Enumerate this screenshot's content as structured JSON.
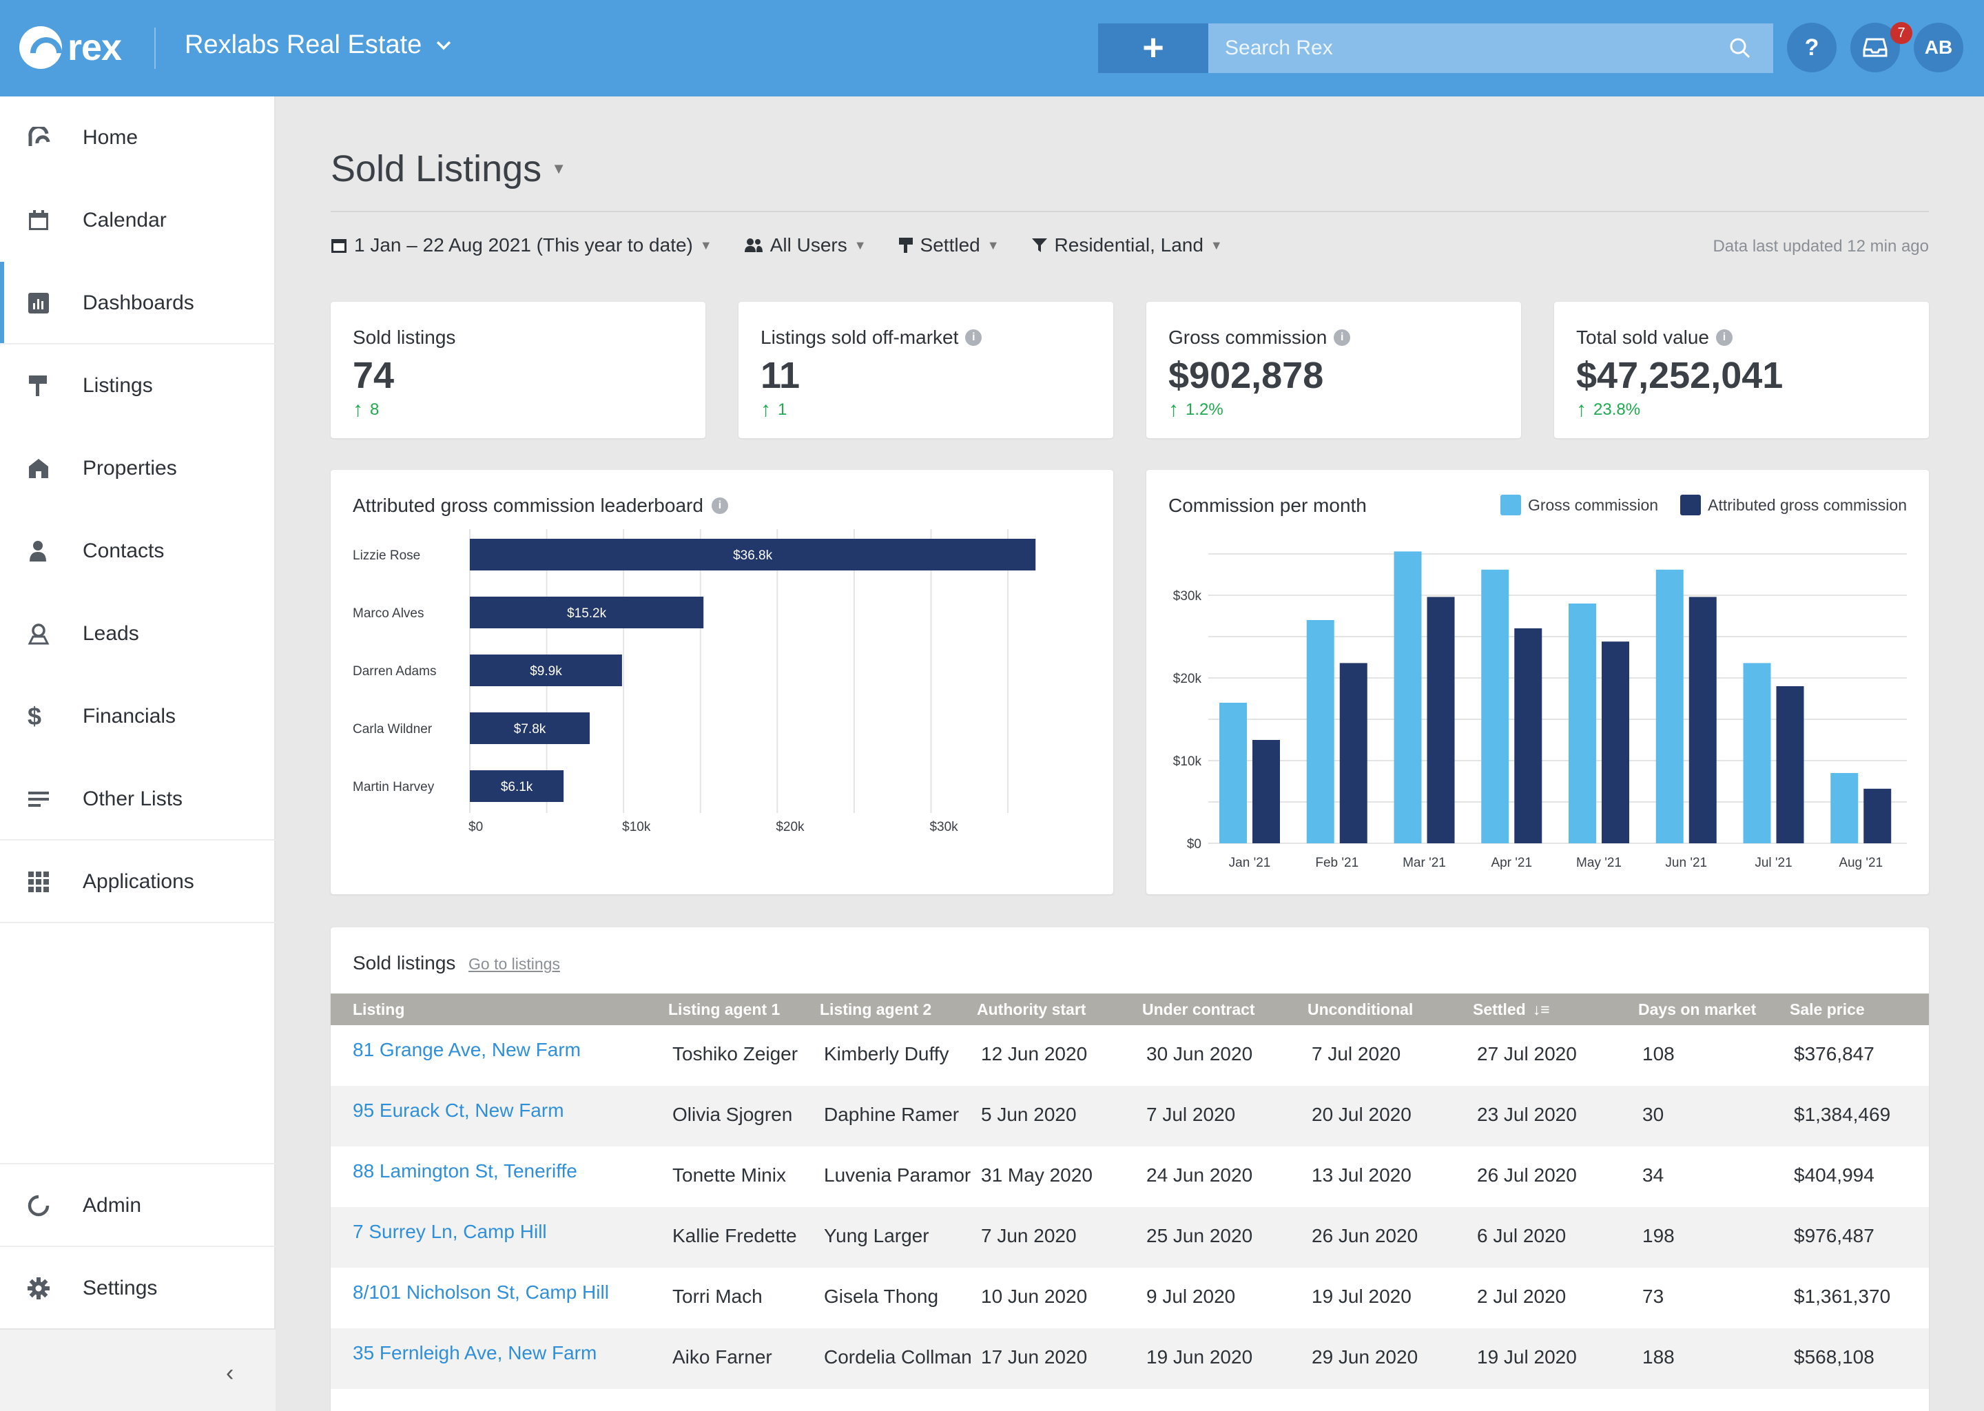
{
  "topbar": {
    "logo_text": "rex",
    "account_name": "Rexlabs Real Estate",
    "add_label": "+",
    "search_placeholder": "Search Rex",
    "help_label": "?",
    "notification_count": "7",
    "avatar_initials": "AB"
  },
  "sidebar": {
    "items": [
      {
        "label": "Home",
        "icon": "home-icon"
      },
      {
        "label": "Calendar",
        "icon": "calendar-icon"
      },
      {
        "label": "Dashboards",
        "icon": "dashboard-icon"
      },
      {
        "label": "Listings",
        "icon": "sign-icon"
      },
      {
        "label": "Properties",
        "icon": "property-icon"
      },
      {
        "label": "Contacts",
        "icon": "person-icon"
      },
      {
        "label": "Leads",
        "icon": "leads-icon"
      },
      {
        "label": "Financials",
        "icon": "dollar-icon"
      },
      {
        "label": "Other Lists",
        "icon": "list-icon"
      },
      {
        "label": "Applications",
        "icon": "grid-icon"
      }
    ],
    "bottom_items": [
      {
        "label": "Admin",
        "icon": "admin-icon"
      },
      {
        "label": "Settings",
        "icon": "gear-icon"
      }
    ],
    "active": "Dashboards",
    "collapse_label": "‹"
  },
  "page": {
    "title": "Sold Listings",
    "filters": {
      "date": "1 Jan – 22 Aug 2021 (This year to date)",
      "users": "All Users",
      "status": "Settled",
      "type": "Residential, Land"
    },
    "updated": "Data last updated 12 min ago"
  },
  "kpis": [
    {
      "label": "Sold listings",
      "value": "74",
      "delta": "8",
      "info": false
    },
    {
      "label": "Listings sold off-market",
      "value": "11",
      "delta": "1",
      "info": true
    },
    {
      "label": "Gross commission",
      "value": "$902,878",
      "delta": "1.2%",
      "info": true
    },
    {
      "label": "Total sold value",
      "value": "$47,252,041",
      "delta": "23.8%",
      "info": true
    }
  ],
  "colors": {
    "light_blue": "#5bbcec",
    "navy": "#22386b",
    "brand": "#4f9fdf",
    "link": "#2f8fd8",
    "positive": "#1faa4f"
  },
  "chart_data": [
    {
      "type": "bar",
      "orientation": "horizontal",
      "title": "Attributed gross commission leaderboard",
      "categories": [
        "Lizzie Rose",
        "Marco Alves",
        "Darren Adams",
        "Carla Wildner",
        "Martin Harvey"
      ],
      "values": [
        36800,
        15200,
        9900,
        7800,
        6100
      ],
      "data_labels": [
        "$36.8k",
        "$15.2k",
        "$9.9k",
        "$7.8k",
        "$6.1k"
      ],
      "xlim": [
        0,
        38000
      ],
      "x_ticks": [
        0,
        10000,
        20000,
        30000
      ],
      "x_tick_labels": [
        "$0",
        "$10k",
        "$20k",
        "$30k"
      ],
      "grid": true
    },
    {
      "type": "bar",
      "title": "Commission per month",
      "categories": [
        "Jan '21",
        "Feb '21",
        "Mar '21",
        "Apr '21",
        "May '21",
        "Jun '21",
        "Jul '21",
        "Aug '21"
      ],
      "series": [
        {
          "name": "Gross commission",
          "values": [
            17000,
            27000,
            35300,
            33100,
            29000,
            33100,
            21800,
            8500
          ]
        },
        {
          "name": "Attributed gross commission",
          "values": [
            12500,
            21800,
            29800,
            26000,
            24400,
            29800,
            19000,
            6600
          ]
        }
      ],
      "ylim": [
        0,
        35000
      ],
      "y_ticks": [
        0,
        10000,
        20000,
        30000
      ],
      "y_tick_labels": [
        "$0",
        "$10k",
        "$20k",
        "$30k"
      ],
      "grid": true,
      "legend": "top-right"
    }
  ],
  "table": {
    "title": "Sold listings",
    "link": "Go to listings",
    "columns": [
      "Listing",
      "Listing agent 1",
      "Listing agent 2",
      "Authority start",
      "Under contract",
      "Unconditional",
      "Settled",
      "Days on market",
      "Sale price"
    ],
    "rows": [
      [
        "81 Grange Ave, New Farm",
        "Toshiko Zeiger",
        "Kimberly Duffy",
        "12 Jun 2020",
        "30 Jun 2020",
        "7 Jul 2020",
        "27 Jul 2020",
        "108",
        "$376,847"
      ],
      [
        "95 Eurack Ct, New Farm",
        "Olivia Sjogren",
        "Daphine Ramer",
        "5 Jun 2020",
        "7 Jul 2020",
        "20 Jul 2020",
        "23 Jul 2020",
        "30",
        "$1,384,469"
      ],
      [
        "88 Lamington St, Teneriffe",
        "Tonette Minix",
        "Luvenia Paramore",
        "31 May 2020",
        "24 Jun 2020",
        "13 Jul 2020",
        "26 Jul 2020",
        "34",
        "$404,994"
      ],
      [
        "7 Surrey Ln, Camp Hill",
        "Kallie Fredette",
        "Yung Larger",
        "7 Jun 2020",
        "25 Jun 2020",
        "26 Jun 2020",
        "6 Jul 2020",
        "198",
        "$976,487"
      ],
      [
        "8/101 Nicholson St, Camp Hill",
        "Torri Mach",
        "Gisela Thong",
        "10 Jun 2020",
        "9 Jul 2020",
        "19 Jul 2020",
        "2 Jul 2020",
        "73",
        "$1,361,370"
      ],
      [
        "35 Fernleigh Ave, New Farm",
        "Aiko Farner",
        "Cordelia Collman",
        "17 Jun 2020",
        "19 Jun 2020",
        "29 Jun 2020",
        "19 Jul 2020",
        "188",
        "$568,108"
      ]
    ]
  }
}
